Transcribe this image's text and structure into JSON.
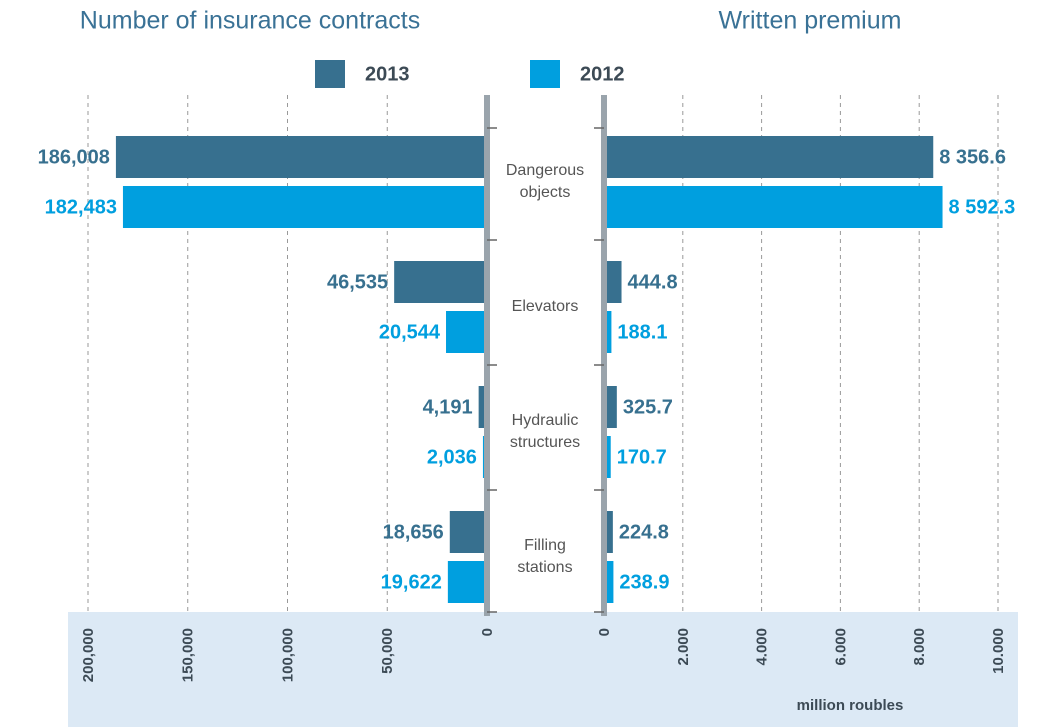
{
  "chart_data": {
    "type": "bar",
    "categories": [
      "Dangerous objects",
      "Elevators",
      "Hydraulic structures",
      "Filling stations"
    ],
    "series": [
      {
        "name": "2013",
        "color": "#37708f"
      },
      {
        "name": "2012",
        "color": "#009fdf"
      }
    ],
    "legend": "top",
    "grid": true,
    "panels": [
      {
        "title": "Number of insurance contracts",
        "x_reversed": true,
        "xlim": [
          0,
          200000
        ],
        "xticks": [
          0,
          {
            "value": 50000,
            "label": "50,000"
          },
          {
            "value": 100000,
            "label": "100,000"
          },
          {
            "value": 150000,
            "label": "150,000"
          },
          {
            "value": 200000,
            "label": "200,000"
          }
        ],
        "series": [
          {
            "values": [
              186008,
              46535,
              4191,
              18656
            ],
            "value_labels": [
              "186,008",
              "46,535",
              "4,191",
              "18,656"
            ]
          },
          {
            "values": [
              182483,
              20544,
              2036,
              19622
            ],
            "value_labels": [
              "182,483",
              "20,544",
              "2,036",
              "19,622"
            ]
          }
        ]
      },
      {
        "title": "Written premium",
        "x_reversed": false,
        "xlabel": "million roubles",
        "xlim": [
          0,
          10000
        ],
        "xticks": [
          0,
          {
            "value": 2000,
            "label": "2.000"
          },
          {
            "value": 4000,
            "label": "4.000"
          },
          {
            "value": 6000,
            "label": "6.000"
          },
          {
            "value": 8000,
            "label": "8.000"
          },
          {
            "value": 10000,
            "label": "10.000"
          }
        ],
        "series": [
          {
            "values": [
              8356.6,
              444.8,
              325.7,
              224.8
            ],
            "value_labels": [
              "8 356.6",
              "444.8",
              "325.7",
              "224.8"
            ]
          },
          {
            "values": [
              8592.3,
              188.1,
              170.7,
              238.9
            ],
            "value_labels": [
              "8 592.3",
              "188.1",
              "170.7",
              "238.9"
            ]
          }
        ]
      }
    ]
  }
}
